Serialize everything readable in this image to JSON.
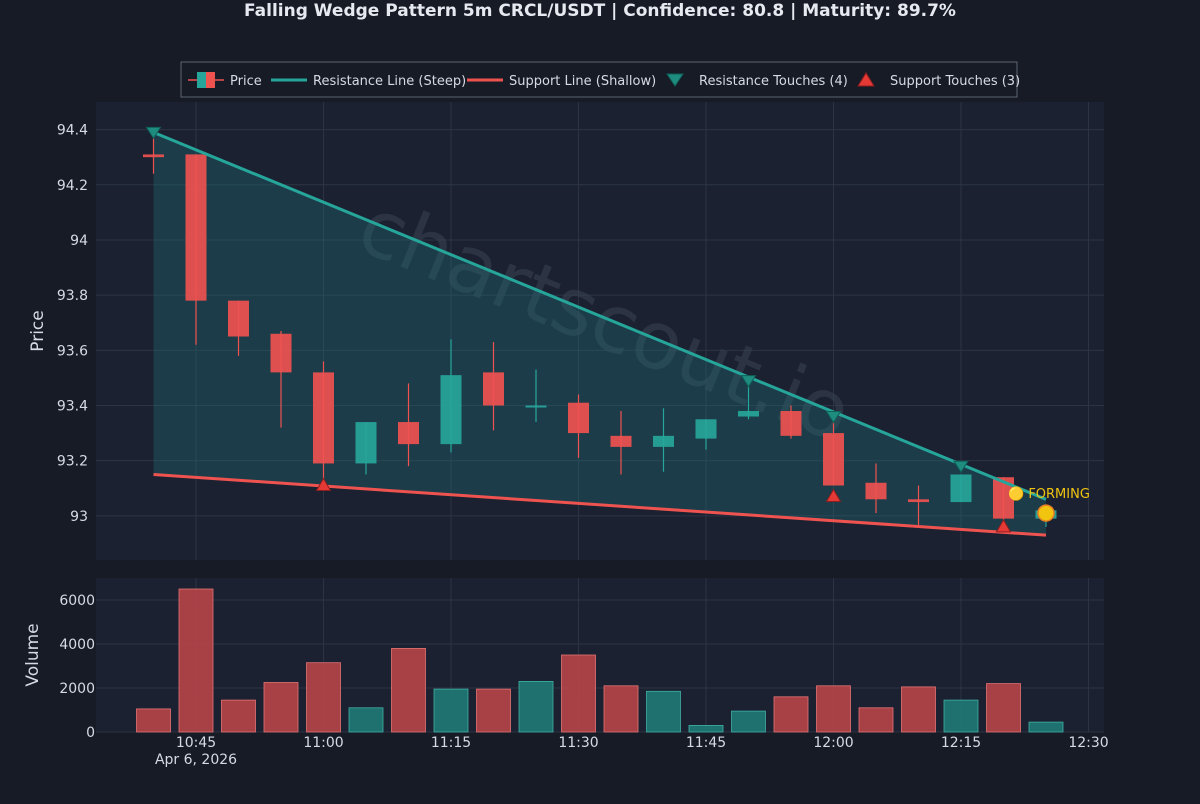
{
  "chart_data": {
    "type": "candlestick",
    "title": "Falling Wedge Pattern 5m CRCL/USDT | Confidence: 80.8 | Maturity: 89.7%",
    "watermark": "chartscout.io",
    "ylabel_price": "Price",
    "ylabel_volume": "Volume",
    "date_label": "Apr 6, 2026",
    "x_ticks": [
      "10:45",
      "11:00",
      "11:15",
      "11:30",
      "11:45",
      "12:00",
      "12:15",
      "12:30"
    ],
    "price_ticks": [
      "94.4",
      "94.2",
      "94",
      "93.8",
      "93.6",
      "93.4",
      "93.2",
      "93"
    ],
    "volume_ticks": [
      "6000",
      "4000",
      "2000",
      "0"
    ],
    "price_range": [
      92.84,
      94.5
    ],
    "volume_range": [
      0,
      7000
    ],
    "legend": {
      "price": "Price",
      "resistance": "Resistance Line (Steep)",
      "support": "Support Line (Shallow)",
      "resistance_touches": "Resistance Touches (4)",
      "support_touches": "Support Touches (3)"
    },
    "forming_label": "🟡 FORMING",
    "colors": {
      "up": "#26a69a",
      "down": "#ef5350",
      "resistance": "#26a69a",
      "support": "#ef5350",
      "forming": "#f1c40f",
      "background": "#161b26",
      "plot": "#1b2130"
    },
    "candles": [
      {
        "t": "10:40",
        "o": 94.31,
        "h": 94.37,
        "l": 94.24,
        "c": 94.3,
        "v": 1050
      },
      {
        "t": "10:45",
        "o": 94.31,
        "h": 94.31,
        "l": 93.62,
        "c": 93.78,
        "v": 6500
      },
      {
        "t": "10:50",
        "o": 93.78,
        "h": 93.78,
        "l": 93.58,
        "c": 93.65,
        "v": 1450
      },
      {
        "t": "10:55",
        "o": 93.66,
        "h": 93.67,
        "l": 93.32,
        "c": 93.52,
        "v": 2250
      },
      {
        "t": "11:00",
        "o": 93.52,
        "h": 93.56,
        "l": 93.11,
        "c": 93.19,
        "v": 3150
      },
      {
        "t": "11:05",
        "o": 93.19,
        "h": 93.34,
        "l": 93.15,
        "c": 93.34,
        "v": 1100
      },
      {
        "t": "11:10",
        "o": 93.34,
        "h": 93.48,
        "l": 93.18,
        "c": 93.26,
        "v": 3800
      },
      {
        "t": "11:15",
        "o": 93.26,
        "h": 93.64,
        "l": 93.23,
        "c": 93.51,
        "v": 1950
      },
      {
        "t": "11:20",
        "o": 93.52,
        "h": 93.63,
        "l": 93.31,
        "c": 93.4,
        "v": 1950
      },
      {
        "t": "11:25",
        "o": 93.4,
        "h": 93.53,
        "l": 93.34,
        "c": 93.4,
        "v": 2300
      },
      {
        "t": "11:30",
        "o": 93.41,
        "h": 93.44,
        "l": 93.21,
        "c": 93.3,
        "v": 3500
      },
      {
        "t": "11:35",
        "o": 93.29,
        "h": 93.38,
        "l": 93.15,
        "c": 93.25,
        "v": 2100
      },
      {
        "t": "11:40",
        "o": 93.25,
        "h": 93.39,
        "l": 93.16,
        "c": 93.29,
        "v": 1850
      },
      {
        "t": "11:45",
        "o": 93.28,
        "h": 93.35,
        "l": 93.24,
        "c": 93.35,
        "v": 300
      },
      {
        "t": "11:50",
        "o": 93.36,
        "h": 93.48,
        "l": 93.35,
        "c": 93.38,
        "v": 950
      },
      {
        "t": "11:55",
        "o": 93.38,
        "h": 93.4,
        "l": 93.28,
        "c": 93.29,
        "v": 1600
      },
      {
        "t": "12:00",
        "o": 93.3,
        "h": 93.35,
        "l": 93.11,
        "c": 93.11,
        "v": 2100
      },
      {
        "t": "12:05",
        "o": 93.12,
        "h": 93.19,
        "l": 93.01,
        "c": 93.06,
        "v": 1100
      },
      {
        "t": "12:10",
        "o": 93.06,
        "h": 93.11,
        "l": 92.96,
        "c": 93.05,
        "v": 2050
      },
      {
        "t": "12:15",
        "o": 93.05,
        "h": 93.15,
        "l": 93.05,
        "c": 93.15,
        "v": 1450
      },
      {
        "t": "12:20",
        "o": 93.14,
        "h": 93.14,
        "l": 92.98,
        "c": 92.99,
        "v": 2200
      },
      {
        "t": "12:25",
        "o": 92.99,
        "h": 93.02,
        "l": 92.96,
        "c": 93.02,
        "v": 450
      }
    ],
    "resistance_line": {
      "start": {
        "t": "10:40",
        "price": 94.39
      },
      "end": {
        "t": "12:25",
        "price": 93.06
      }
    },
    "support_line": {
      "start": {
        "t": "10:40",
        "price": 93.15
      },
      "end": {
        "t": "12:25",
        "price": 92.93
      }
    },
    "resistance_touches": [
      {
        "t": "10:40",
        "price": 94.39
      },
      {
        "t": "11:50",
        "price": 93.49
      },
      {
        "t": "12:00",
        "price": 93.36
      },
      {
        "t": "12:15",
        "price": 93.18
      }
    ],
    "support_touches": [
      {
        "t": "11:00",
        "price": 93.11
      },
      {
        "t": "12:00",
        "price": 93.07
      },
      {
        "t": "12:20",
        "price": 92.96
      }
    ],
    "forming_point": {
      "t": "12:25",
      "price": 93.01
    }
  }
}
